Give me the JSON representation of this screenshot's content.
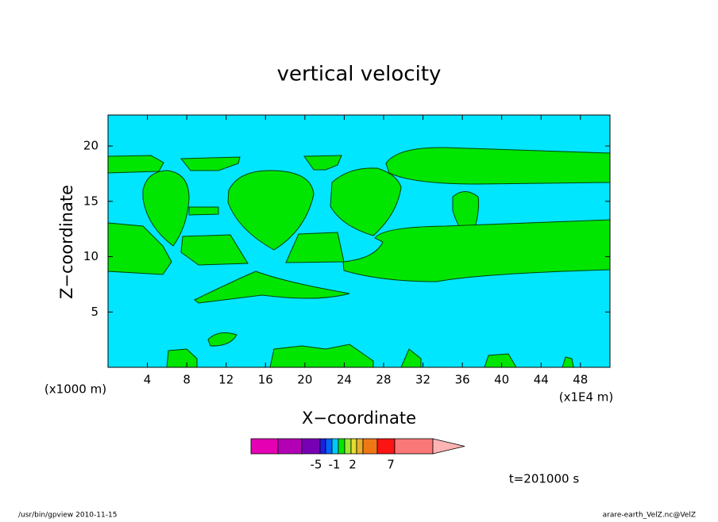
{
  "chart_data": {
    "type": "contour",
    "title": "vertical velocity",
    "x_label": "X−coordinate",
    "y_label": "Z−coordinate",
    "x_unit": "(x1E4 m)",
    "y_unit": "(x1000 m)",
    "xlim": [
      0,
      51
    ],
    "xticks": [
      4,
      8,
      12,
      16,
      20,
      24,
      28,
      32,
      36,
      40,
      44,
      48
    ],
    "ylim": [
      0,
      22.8
    ],
    "yticks": [
      5,
      10,
      15,
      20
    ],
    "background_color": "#00e6ff",
    "fill_color": "#00e600",
    "colorbar": {
      "colors": [
        "#e600b4",
        "#b400b4",
        "#7800b4",
        "#1e1ee6",
        "#0064ff",
        "#00c8ff",
        "#00e600",
        "#a0e632",
        "#e6dc32",
        "#e6af2d",
        "#f07814",
        "#fa1414",
        "#fa7878",
        "#ffb4b4"
      ],
      "labels": [
        -5,
        -1,
        2,
        7
      ]
    },
    "time_label": "t=201000 s",
    "footer_left": "/usr/bin/gpview   2010-11-15",
    "footer_right": "arare-earth_VelZ.nc@VelZ"
  }
}
